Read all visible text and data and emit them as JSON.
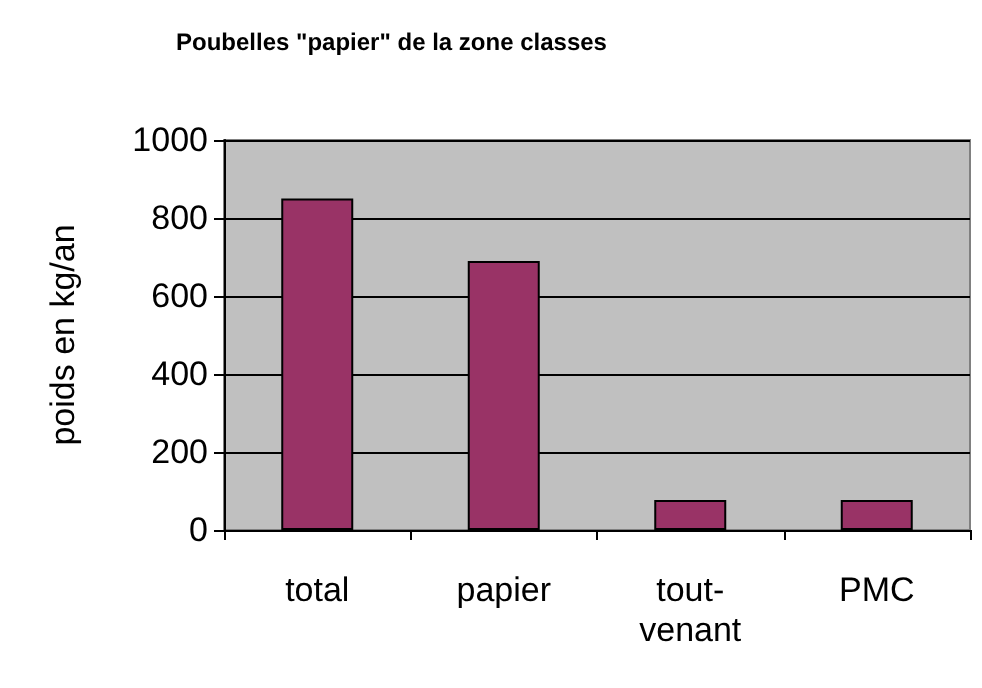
{
  "chart_data": {
    "type": "bar",
    "title": "Poubelles \"papier\" de la zone classes",
    "ylabel": "poids en kg/an",
    "categories": [
      "total",
      "papier",
      "tout-venant",
      "PMC"
    ],
    "values": [
      850,
      690,
      77,
      77
    ],
    "color": "#993366",
    "ylim": [
      0,
      1000
    ],
    "yticks": [
      0,
      200,
      400,
      600,
      800,
      1000
    ],
    "grid": "y"
  }
}
